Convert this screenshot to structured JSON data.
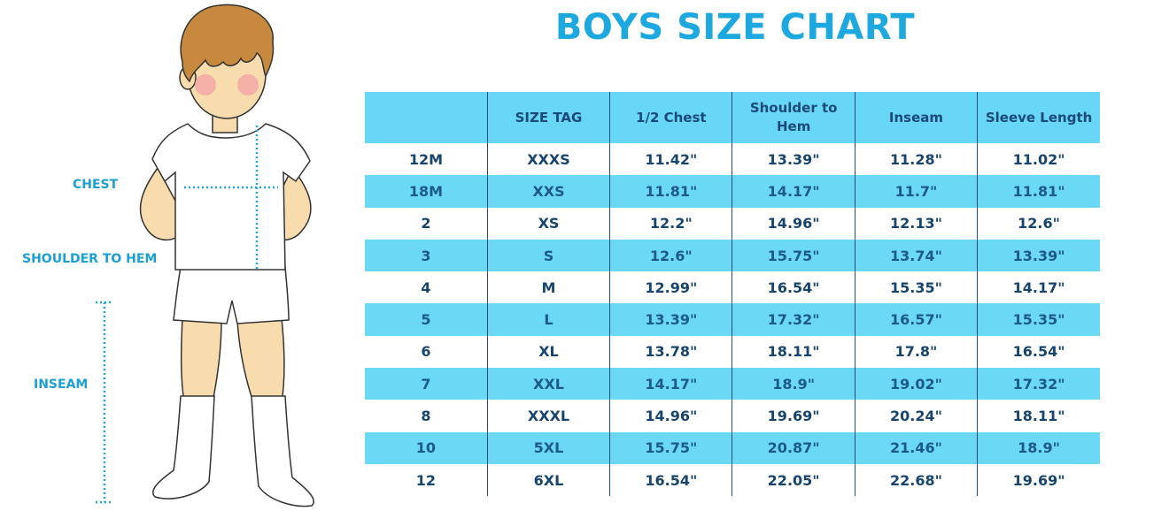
{
  "title": "BOYS SIZE CHART",
  "figure": {
    "labels": {
      "chest": "CHEST",
      "shoulder_to_hem": "SHOULDER TO HEM",
      "inseam": "INSEAM"
    },
    "colors": {
      "accent": "#1ea8e0",
      "skin": "#f8dcae",
      "hair": "#c7893e",
      "cheek": "#f3a4a4"
    }
  },
  "table": {
    "headers": [
      "",
      "SIZE TAG",
      "1/2 Chest",
      "Shoulder to Hem",
      "Inseam",
      "Sleeve Length"
    ],
    "rows": [
      [
        "12M",
        "XXXS",
        "11.42\"",
        "13.39\"",
        "11.28\"",
        "11.02\""
      ],
      [
        "18M",
        "XXS",
        "11.81\"",
        "14.17\"",
        "11.7\"",
        "11.81\""
      ],
      [
        "2",
        "XS",
        "12.2\"",
        "14.96\"",
        "12.13\"",
        "12.6\""
      ],
      [
        "3",
        "S",
        "12.6\"",
        "15.75\"",
        "13.74\"",
        "13.39\""
      ],
      [
        "4",
        "M",
        "12.99\"",
        "16.54\"",
        "15.35\"",
        "14.17\""
      ],
      [
        "5",
        "L",
        "13.39\"",
        "17.32\"",
        "16.57\"",
        "15.35\""
      ],
      [
        "6",
        "XL",
        "13.78\"",
        "18.11\"",
        "17.8\"",
        "16.54\""
      ],
      [
        "7",
        "XXL",
        "14.17\"",
        "18.9\"",
        "19.02\"",
        "17.32\""
      ],
      [
        "8",
        "XXXL",
        "14.96\"",
        "19.69\"",
        "20.24\"",
        "18.11\""
      ],
      [
        "10",
        "5XL",
        "15.75\"",
        "20.87\"",
        "21.46\"",
        "18.9\""
      ],
      [
        "12",
        "6XL",
        "16.54\"",
        "22.05\"",
        "22.68\"",
        "19.69\""
      ]
    ],
    "colors": {
      "header_bg": "#68d7f7",
      "stripe_bg": "#6bd8f6",
      "text": "#17456f"
    }
  }
}
